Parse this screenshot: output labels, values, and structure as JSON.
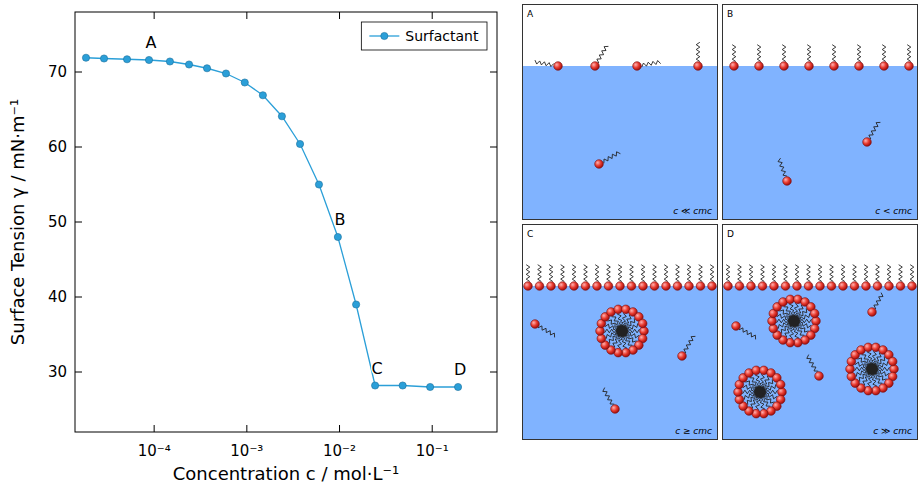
{
  "chart_data": {
    "type": "line",
    "x_label": "Concentration c / mol·L⁻¹",
    "y_label": "Surface Tension γ / mN·m⁻¹",
    "log": "x",
    "x": [
      1.84e-05,
      2.88e-05,
      5.1e-05,
      8.8e-05,
      0.000148,
      0.000238,
      0.000372,
      0.000596,
      0.00095,
      0.00149,
      0.00239,
      0.00375,
      0.006,
      0.0096,
      0.0151,
      0.0242,
      0.048,
      0.095,
      0.19
    ],
    "series": [
      {
        "name": "Surfactant",
        "color": "#2b9fd8",
        "marker": "circle",
        "line_style": "solid",
        "values": [
          71.9,
          71.8,
          71.7,
          71.6,
          71.4,
          71.0,
          70.5,
          69.8,
          68.6,
          66.9,
          64.1,
          60.4,
          55.0,
          48.0,
          39.0,
          28.2,
          28.2,
          28.0,
          28.0
        ]
      }
    ],
    "xlim": [
      1.4e-05,
      0.5
    ],
    "ylim": [
      22,
      78
    ],
    "xticks": [
      {
        "value": 0.0001,
        "label": "10⁻⁴"
      },
      {
        "value": 0.001,
        "label": "10⁻³"
      },
      {
        "value": 0.01,
        "label": "10⁻²"
      },
      {
        "value": 0.1,
        "label": "10⁻¹"
      }
    ],
    "yticks": [
      30,
      40,
      50,
      60,
      70
    ],
    "grid": false,
    "legend": "upper right",
    "annotations": [
      {
        "text": "A",
        "x": 8.8e-05,
        "y": 71.6
      },
      {
        "text": "B",
        "x": 0.0096,
        "y": 48.0
      },
      {
        "text": "C",
        "x": 0.0242,
        "y": 28.2
      },
      {
        "text": "D",
        "x": 0.19,
        "y": 28.0
      }
    ]
  },
  "panels": [
    {
      "letter": "A",
      "caption": "c ≪ cmc"
    },
    {
      "letter": "B",
      "caption": "c < cmc"
    },
    {
      "letter": "C",
      "caption": "c ≥ cmc"
    },
    {
      "letter": "D",
      "caption": "c ≫ cmc"
    }
  ]
}
